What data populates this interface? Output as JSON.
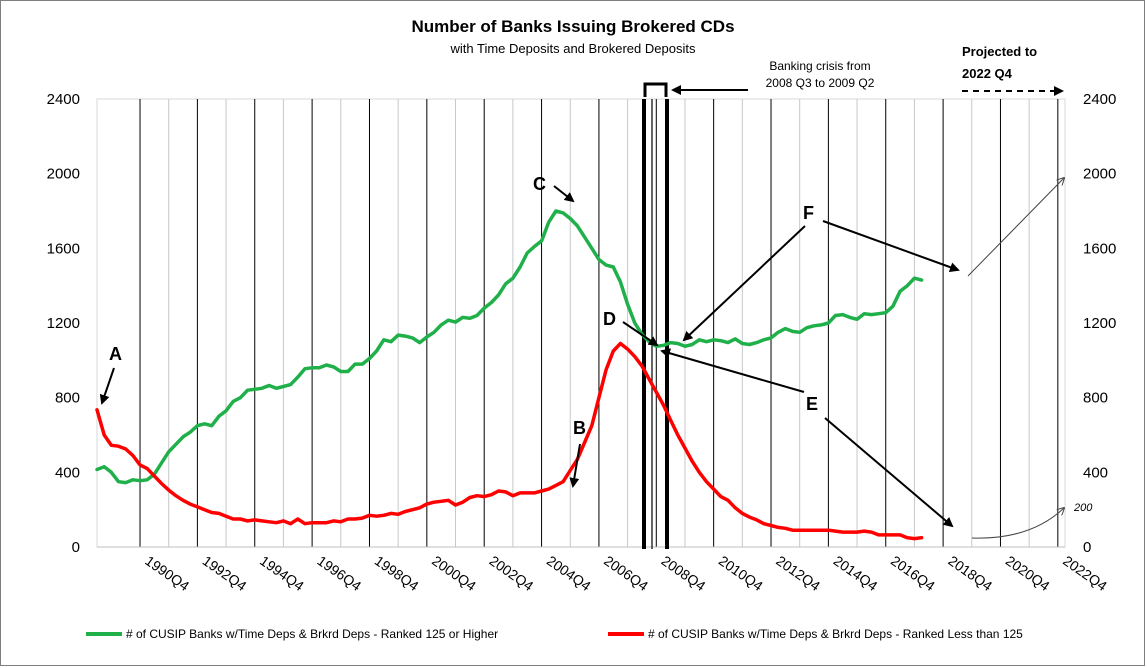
{
  "chart_data": {
    "type": "line",
    "title": "Number of Banks Issuing Brokered CDs",
    "subtitle": "with Time Deposits and Brokered Deposits",
    "ylim": [
      0,
      2400
    ],
    "y_ticks": [
      "0",
      "400",
      "800",
      "1200",
      "1600",
      "2000",
      "2400"
    ],
    "y_tick_values": [
      0,
      400,
      800,
      1200,
      1600,
      2000,
      2400
    ],
    "xlim": [
      1989.25,
      2023.0
    ],
    "x_tick_labels": [
      "1990Q4",
      "1992Q4",
      "1994Q4",
      "1996Q4",
      "1998Q4",
      "2000Q4",
      "2002Q4",
      "2004Q4",
      "2006Q4",
      "2008Q4",
      "2010Q4",
      "2012Q4",
      "2014Q4",
      "2016Q4",
      "2018Q4",
      "2020Q4",
      "2022Q4"
    ],
    "x_tick_values": [
      1990.75,
      1992.75,
      1994.75,
      1996.75,
      1998.75,
      2000.75,
      2002.75,
      2004.75,
      2006.75,
      2008.75,
      2010.75,
      2012.75,
      2014.75,
      2016.75,
      2018.75,
      2020.75,
      2022.75
    ],
    "grid": "vertical",
    "legend_position": "bottom",
    "series": [
      {
        "name": "# of CUSIP Banks w/Time Deps & Brkrd Deps - Ranked 125 or Higher",
        "color": "#1fb04a",
        "points": [
          [
            1989.25,
            415
          ],
          [
            1989.5,
            430
          ],
          [
            1989.75,
            400
          ],
          [
            1990.0,
            350
          ],
          [
            1990.25,
            345
          ],
          [
            1990.5,
            360
          ],
          [
            1990.75,
            355
          ],
          [
            1991.0,
            360
          ],
          [
            1991.25,
            390
          ],
          [
            1991.5,
            450
          ],
          [
            1991.75,
            510
          ],
          [
            1992.0,
            550
          ],
          [
            1992.25,
            590
          ],
          [
            1992.5,
            615
          ],
          [
            1992.75,
            650
          ],
          [
            1993.0,
            660
          ],
          [
            1993.25,
            650
          ],
          [
            1993.5,
            700
          ],
          [
            1993.75,
            730
          ],
          [
            1994.0,
            780
          ],
          [
            1994.25,
            800
          ],
          [
            1994.5,
            840
          ],
          [
            1994.75,
            845
          ],
          [
            1995.0,
            850
          ],
          [
            1995.25,
            865
          ],
          [
            1995.5,
            850
          ],
          [
            1995.75,
            860
          ],
          [
            1996.0,
            870
          ],
          [
            1996.25,
            910
          ],
          [
            1996.5,
            955
          ],
          [
            1996.75,
            960
          ],
          [
            1997.0,
            960
          ],
          [
            1997.25,
            975
          ],
          [
            1997.5,
            965
          ],
          [
            1997.75,
            940
          ],
          [
            1998.0,
            940
          ],
          [
            1998.25,
            980
          ],
          [
            1998.5,
            980
          ],
          [
            1998.75,
            1010
          ],
          [
            1999.0,
            1050
          ],
          [
            1999.25,
            1110
          ],
          [
            1999.5,
            1100
          ],
          [
            1999.75,
            1135
          ],
          [
            2000.0,
            1130
          ],
          [
            2000.25,
            1120
          ],
          [
            2000.5,
            1095
          ],
          [
            2000.75,
            1125
          ],
          [
            2001.0,
            1150
          ],
          [
            2001.25,
            1190
          ],
          [
            2001.5,
            1215
          ],
          [
            2001.75,
            1205
          ],
          [
            2002.0,
            1230
          ],
          [
            2002.25,
            1225
          ],
          [
            2002.5,
            1240
          ],
          [
            2002.75,
            1280
          ],
          [
            2003.0,
            1310
          ],
          [
            2003.25,
            1350
          ],
          [
            2003.5,
            1410
          ],
          [
            2003.75,
            1440
          ],
          [
            2004.0,
            1500
          ],
          [
            2004.25,
            1575
          ],
          [
            2004.5,
            1610
          ],
          [
            2004.75,
            1640
          ],
          [
            2005.0,
            1740
          ],
          [
            2005.25,
            1800
          ],
          [
            2005.5,
            1790
          ],
          [
            2005.75,
            1760
          ],
          [
            2006.0,
            1720
          ],
          [
            2006.25,
            1660
          ],
          [
            2006.5,
            1600
          ],
          [
            2006.75,
            1540
          ],
          [
            2007.0,
            1510
          ],
          [
            2007.25,
            1500
          ],
          [
            2007.5,
            1420
          ],
          [
            2007.75,
            1300
          ],
          [
            2008.0,
            1200
          ],
          [
            2008.25,
            1140
          ],
          [
            2008.5,
            1100
          ],
          [
            2008.75,
            1075
          ],
          [
            2009.0,
            1080
          ],
          [
            2009.25,
            1095
          ],
          [
            2009.5,
            1090
          ],
          [
            2009.75,
            1075
          ],
          [
            2010.0,
            1085
          ],
          [
            2010.25,
            1110
          ],
          [
            2010.5,
            1100
          ],
          [
            2010.75,
            1110
          ],
          [
            2011.0,
            1105
          ],
          [
            2011.25,
            1095
          ],
          [
            2011.5,
            1115
          ],
          [
            2011.75,
            1090
          ],
          [
            2012.0,
            1085
          ],
          [
            2012.25,
            1095
          ],
          [
            2012.5,
            1110
          ],
          [
            2012.75,
            1120
          ],
          [
            2013.0,
            1150
          ],
          [
            2013.25,
            1170
          ],
          [
            2013.5,
            1155
          ],
          [
            2013.75,
            1150
          ],
          [
            2014.0,
            1175
          ],
          [
            2014.25,
            1185
          ],
          [
            2014.5,
            1190
          ],
          [
            2014.75,
            1200
          ],
          [
            2015.0,
            1240
          ],
          [
            2015.25,
            1245
          ],
          [
            2015.5,
            1230
          ],
          [
            2015.75,
            1220
          ],
          [
            2016.0,
            1250
          ],
          [
            2016.25,
            1245
          ],
          [
            2016.5,
            1250
          ],
          [
            2016.75,
            1255
          ],
          [
            2017.0,
            1290
          ],
          [
            2017.25,
            1370
          ],
          [
            2017.5,
            1400
          ],
          [
            2017.75,
            1440
          ],
          [
            2018.0,
            1430
          ]
        ]
      },
      {
        "name": "# of CUSIP Banks w/Time Deps & Brkrd Deps -  Ranked Less than 125",
        "color": "#ff0000",
        "points": [
          [
            1989.25,
            735
          ],
          [
            1989.5,
            600
          ],
          [
            1989.75,
            545
          ],
          [
            1990.0,
            540
          ],
          [
            1990.25,
            525
          ],
          [
            1990.5,
            490
          ],
          [
            1990.75,
            440
          ],
          [
            1991.0,
            420
          ],
          [
            1991.25,
            380
          ],
          [
            1991.5,
            340
          ],
          [
            1991.75,
            305
          ],
          [
            1992.0,
            275
          ],
          [
            1992.25,
            250
          ],
          [
            1992.5,
            230
          ],
          [
            1992.75,
            215
          ],
          [
            1993.0,
            200
          ],
          [
            1993.25,
            185
          ],
          [
            1993.5,
            180
          ],
          [
            1993.75,
            165
          ],
          [
            1994.0,
            150
          ],
          [
            1994.25,
            150
          ],
          [
            1994.5,
            140
          ],
          [
            1994.75,
            145
          ],
          [
            1995.0,
            140
          ],
          [
            1995.25,
            135
          ],
          [
            1995.5,
            130
          ],
          [
            1995.75,
            140
          ],
          [
            1996.0,
            125
          ],
          [
            1996.25,
            150
          ],
          [
            1996.5,
            125
          ],
          [
            1996.75,
            130
          ],
          [
            1997.0,
            130
          ],
          [
            1997.25,
            130
          ],
          [
            1997.5,
            140
          ],
          [
            1997.75,
            135
          ],
          [
            1998.0,
            150
          ],
          [
            1998.25,
            150
          ],
          [
            1998.5,
            155
          ],
          [
            1998.75,
            170
          ],
          [
            1999.0,
            165
          ],
          [
            1999.25,
            170
          ],
          [
            1999.5,
            180
          ],
          [
            1999.75,
            175
          ],
          [
            2000.0,
            190
          ],
          [
            2000.25,
            200
          ],
          [
            2000.5,
            210
          ],
          [
            2000.75,
            230
          ],
          [
            2001.0,
            240
          ],
          [
            2001.25,
            245
          ],
          [
            2001.5,
            250
          ],
          [
            2001.75,
            225
          ],
          [
            2002.0,
            240
          ],
          [
            2002.25,
            265
          ],
          [
            2002.5,
            275
          ],
          [
            2002.75,
            270
          ],
          [
            2003.0,
            280
          ],
          [
            2003.25,
            300
          ],
          [
            2003.5,
            295
          ],
          [
            2003.75,
            275
          ],
          [
            2004.0,
            290
          ],
          [
            2004.25,
            290
          ],
          [
            2004.5,
            290
          ],
          [
            2004.75,
            300
          ],
          [
            2005.0,
            310
          ],
          [
            2005.25,
            330
          ],
          [
            2005.5,
            350
          ],
          [
            2005.75,
            410
          ],
          [
            2006.0,
            470
          ],
          [
            2006.25,
            560
          ],
          [
            2006.5,
            650
          ],
          [
            2006.75,
            800
          ],
          [
            2007.0,
            950
          ],
          [
            2007.25,
            1050
          ],
          [
            2007.5,
            1090
          ],
          [
            2007.75,
            1060
          ],
          [
            2008.0,
            1020
          ],
          [
            2008.25,
            970
          ],
          [
            2008.5,
            900
          ],
          [
            2008.75,
            830
          ],
          [
            2009.0,
            760
          ],
          [
            2009.25,
            680
          ],
          [
            2009.5,
            600
          ],
          [
            2009.75,
            530
          ],
          [
            2010.0,
            460
          ],
          [
            2010.25,
            400
          ],
          [
            2010.5,
            350
          ],
          [
            2010.75,
            310
          ],
          [
            2011.0,
            270
          ],
          [
            2011.25,
            250
          ],
          [
            2011.5,
            210
          ],
          [
            2011.75,
            180
          ],
          [
            2012.0,
            160
          ],
          [
            2012.25,
            145
          ],
          [
            2012.5,
            125
          ],
          [
            2012.75,
            115
          ],
          [
            2013.0,
            105
          ],
          [
            2013.25,
            100
          ],
          [
            2013.5,
            90
          ],
          [
            2013.75,
            90
          ],
          [
            2014.0,
            90
          ],
          [
            2014.25,
            90
          ],
          [
            2014.5,
            90
          ],
          [
            2014.75,
            90
          ],
          [
            2015.0,
            85
          ],
          [
            2015.25,
            80
          ],
          [
            2015.5,
            80
          ],
          [
            2015.75,
            80
          ],
          [
            2016.0,
            85
          ],
          [
            2016.25,
            80
          ],
          [
            2016.5,
            65
          ],
          [
            2016.75,
            65
          ],
          [
            2017.0,
            65
          ],
          [
            2017.25,
            65
          ],
          [
            2017.5,
            50
          ],
          [
            2017.75,
            45
          ],
          [
            2018.0,
            50
          ]
        ]
      }
    ],
    "annotations": {
      "A": "A",
      "B": "B",
      "C": "C",
      "D": "D",
      "E": "E",
      "F": "F",
      "crisis_line1": "Banking crisis from",
      "crisis_line2": "2008 Q3 to 2009 Q2",
      "projected_line1": "Projected to",
      "projected_line2": "2022 Q4",
      "value_200": "200"
    }
  }
}
